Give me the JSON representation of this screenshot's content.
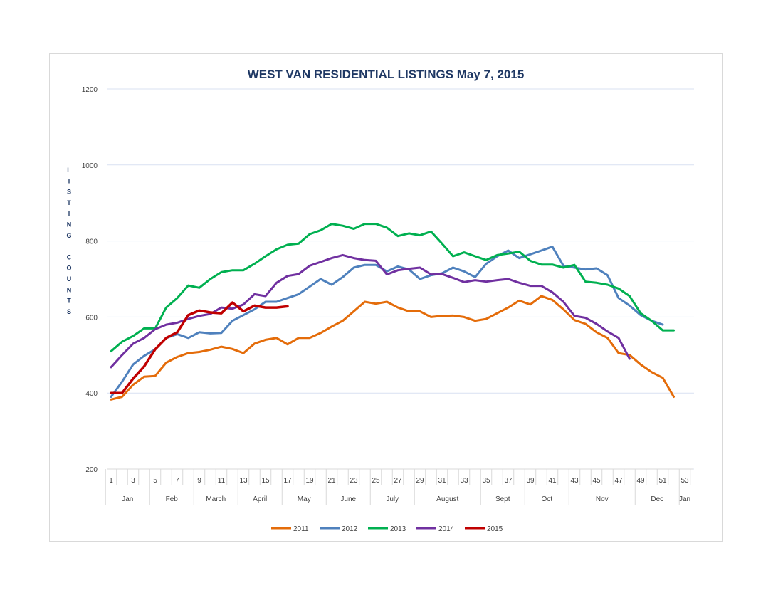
{
  "chart_data": {
    "type": "line",
    "title": "WEST VAN RESIDENTIAL LISTINGS May 7, 2015",
    "xlabel": "",
    "ylabel": "LISTING COUNTS",
    "ylim": [
      200,
      1200
    ],
    "xlim": [
      1,
      53
    ],
    "y_ticks": [
      200,
      400,
      600,
      800,
      1000,
      1200
    ],
    "x_ticks": [
      1,
      3,
      5,
      7,
      9,
      11,
      13,
      15,
      17,
      19,
      21,
      23,
      25,
      27,
      29,
      31,
      33,
      35,
      37,
      39,
      41,
      43,
      45,
      47,
      49,
      51,
      53
    ],
    "months": [
      {
        "label": "Jan",
        "start": 1,
        "end": 5
      },
      {
        "label": "Feb",
        "start": 5,
        "end": 9
      },
      {
        "label": "March",
        "start": 9,
        "end": 13
      },
      {
        "label": "April",
        "start": 13,
        "end": 17
      },
      {
        "label": "May",
        "start": 17,
        "end": 21
      },
      {
        "label": "June",
        "start": 21,
        "end": 25
      },
      {
        "label": "July",
        "start": 25,
        "end": 29
      },
      {
        "label": "August",
        "start": 29,
        "end": 35
      },
      {
        "label": "Sept",
        "start": 35,
        "end": 39
      },
      {
        "label": "Oct",
        "start": 39,
        "end": 43
      },
      {
        "label": "Nov",
        "start": 43,
        "end": 49
      },
      {
        "label": "Dec",
        "start": 49,
        "end": 53
      },
      {
        "label": "Jan",
        "start": 53,
        "end": 54
      }
    ],
    "grid": true,
    "legend_position": "bottom",
    "series": [
      {
        "name": "2011",
        "color": "#e46c0a",
        "x": [
          1,
          2,
          3,
          4,
          5,
          6,
          7,
          8,
          9,
          10,
          11,
          12,
          13,
          14,
          15,
          16,
          17,
          18,
          19,
          20,
          21,
          22,
          23,
          24,
          25,
          26,
          27,
          28,
          29,
          30,
          31,
          32,
          33,
          34,
          35,
          36,
          37,
          38,
          39,
          40,
          41,
          42,
          43,
          44,
          45,
          46,
          47,
          48,
          49,
          50,
          51,
          52
        ],
        "values": [
          383,
          390,
          422,
          443,
          445,
          480,
          495,
          505,
          508,
          514,
          522,
          516,
          505,
          530,
          540,
          545,
          528,
          545,
          545,
          558,
          575,
          590,
          615,
          640,
          635,
          640,
          625,
          615,
          615,
          600,
          603,
          604,
          600,
          590,
          595,
          610,
          625,
          643,
          633,
          655,
          645,
          620,
          592,
          582,
          560,
          545,
          505,
          500,
          475,
          455,
          440,
          390
        ]
      },
      {
        "name": "2012",
        "color": "#4f81bd",
        "x": [
          1,
          2,
          3,
          4,
          5,
          6,
          7,
          8,
          9,
          10,
          11,
          12,
          13,
          14,
          15,
          16,
          17,
          18,
          19,
          20,
          21,
          22,
          23,
          24,
          25,
          26,
          27,
          28,
          29,
          30,
          31,
          32,
          33,
          34,
          35,
          36,
          37,
          38,
          39,
          40,
          41,
          42,
          43,
          44,
          45,
          46,
          47,
          48,
          49,
          50,
          51
        ],
        "values": [
          390,
          430,
          475,
          498,
          515,
          545,
          555,
          545,
          560,
          557,
          558,
          590,
          605,
          620,
          640,
          640,
          650,
          660,
          680,
          700,
          685,
          705,
          730,
          737,
          737,
          720,
          733,
          725,
          700,
          710,
          715,
          730,
          720,
          705,
          740,
          760,
          775,
          755,
          765,
          775,
          785,
          735,
          730,
          725,
          728,
          710,
          650,
          630,
          605,
          590,
          580
        ]
      },
      {
        "name": "2013",
        "color": "#00b050",
        "x": [
          1,
          2,
          3,
          4,
          5,
          6,
          7,
          8,
          9,
          10,
          11,
          12,
          13,
          14,
          15,
          16,
          17,
          18,
          19,
          20,
          21,
          22,
          23,
          24,
          25,
          26,
          27,
          28,
          29,
          30,
          31,
          32,
          33,
          34,
          35,
          36,
          37,
          38,
          39,
          40,
          41,
          42,
          43,
          44,
          45,
          46,
          47,
          48,
          49,
          50,
          51,
          52
        ],
        "values": [
          510,
          535,
          550,
          570,
          570,
          625,
          650,
          683,
          677,
          700,
          718,
          723,
          723,
          740,
          760,
          778,
          790,
          793,
          818,
          828,
          845,
          840,
          832,
          845,
          845,
          835,
          813,
          820,
          815,
          825,
          793,
          760,
          770,
          760,
          750,
          763,
          767,
          772,
          748,
          738,
          738,
          730,
          737,
          693,
          690,
          685,
          675,
          655,
          610,
          590,
          565,
          565
        ]
      },
      {
        "name": "2014",
        "color": "#7030a0",
        "x": [
          1,
          2,
          3,
          4,
          5,
          6,
          7,
          8,
          9,
          10,
          11,
          12,
          13,
          14,
          15,
          16,
          17,
          18,
          19,
          20,
          21,
          22,
          23,
          24,
          25,
          26,
          27,
          28,
          29,
          30,
          31,
          32,
          33,
          34,
          35,
          36,
          37,
          38,
          39,
          40,
          41,
          42,
          43,
          44,
          45,
          46,
          47,
          48
        ],
        "values": [
          468,
          500,
          530,
          545,
          568,
          580,
          585,
          595,
          603,
          608,
          625,
          622,
          633,
          660,
          655,
          690,
          708,
          713,
          735,
          745,
          755,
          763,
          755,
          750,
          748,
          712,
          723,
          727,
          730,
          712,
          713,
          703,
          692,
          697,
          693,
          697,
          700,
          690,
          682,
          682,
          665,
          640,
          603,
          598,
          582,
          562,
          545,
          490
        ]
      },
      {
        "name": "2015",
        "color": "#c00000",
        "x": [
          1,
          2,
          3,
          4,
          5,
          6,
          7,
          8,
          9,
          10,
          11,
          12,
          13,
          14,
          15,
          16,
          17
        ],
        "values": [
          400,
          400,
          438,
          470,
          515,
          545,
          560,
          605,
          617,
          612,
          610,
          638,
          615,
          630,
          625,
          625,
          628
        ]
      }
    ]
  }
}
